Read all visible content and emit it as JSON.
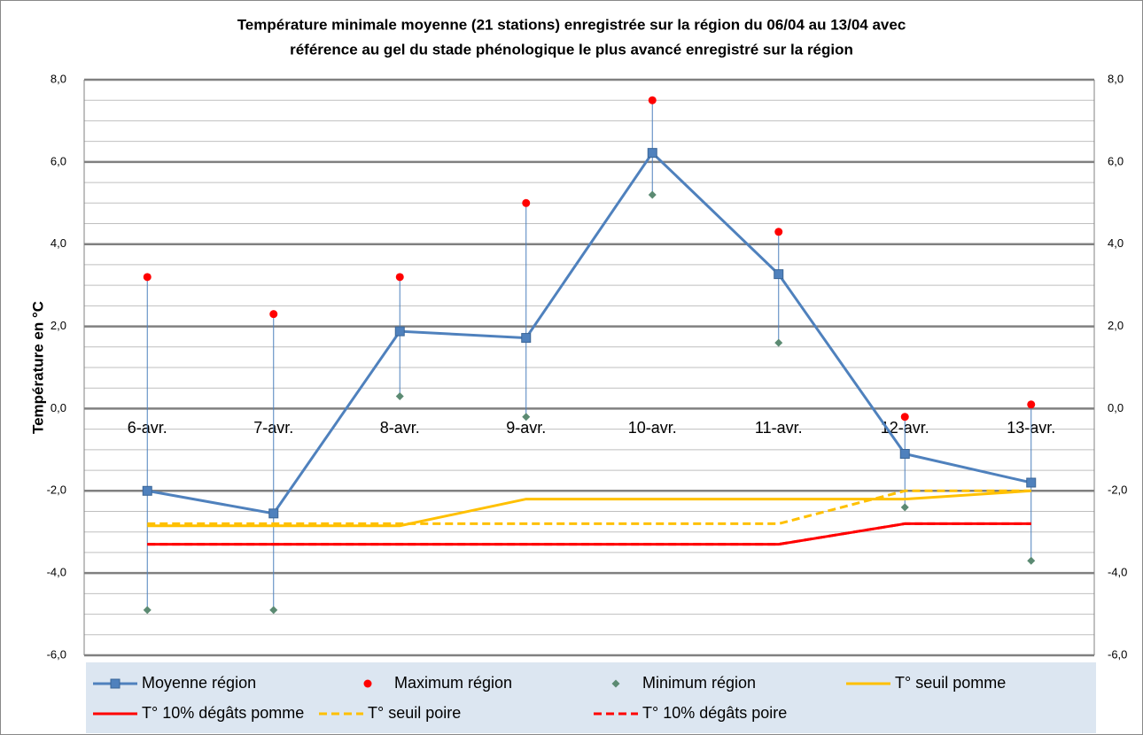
{
  "chart_data": {
    "type": "line",
    "title": [
      "Température minimale moyenne (21 stations) enregistrée sur la région du 06/04 au 13/04 avec",
      "référence au gel du stade phénologique le plus avancé enregistré sur la région"
    ],
    "y_label": "Température en °C",
    "categories": [
      "6-avr.",
      "7-avr.",
      "8-avr.",
      "9-avr.",
      "10-avr.",
      "11-avr.",
      "12-avr.",
      "13-avr."
    ],
    "ylim": [
      -6,
      8
    ],
    "yticks": [
      {
        "value": -6,
        "label": "-6,0"
      },
      {
        "value": -4,
        "label": "-4,0"
      },
      {
        "value": -2,
        "label": "-2,0"
      },
      {
        "value": 0,
        "label": "0,0"
      },
      {
        "value": 2,
        "label": "2,0"
      },
      {
        "value": 4,
        "label": "4,0"
      },
      {
        "value": 6,
        "label": "6,0"
      },
      {
        "value": 8,
        "label": "8,0"
      }
    ],
    "minor_yticks": [
      -5.5,
      -5,
      -4.5,
      -3.5,
      -3,
      -2.5,
      -1.5,
      -1,
      -0.5,
      0.5,
      1,
      1.5,
      2.5,
      3,
      3.5,
      4.5,
      5,
      5.5,
      6.5,
      7,
      7.5
    ],
    "grid": true,
    "series": [
      {
        "name": "Moyenne région",
        "color": "#4f81bd",
        "style": "solid",
        "marker": "square",
        "values": [
          -2.0,
          -2.55,
          1.88,
          1.72,
          6.22,
          3.27,
          -1.1,
          -1.8
        ]
      },
      {
        "name": "Maximum région",
        "color": "#ff0000",
        "style": "none",
        "marker": "circle",
        "values": [
          3.2,
          2.3,
          3.2,
          5.0,
          7.5,
          4.3,
          -0.2,
          0.1
        ]
      },
      {
        "name": "Minimum région",
        "color": "#5b8a72",
        "style": "none",
        "marker": "diamond",
        "values": [
          -4.9,
          -4.9,
          0.3,
          -0.2,
          5.2,
          1.6,
          -2.4,
          -3.7
        ]
      },
      {
        "name": "T° seuil pomme",
        "color": "#ffc000",
        "style": "solid",
        "marker": null,
        "values": [
          -2.85,
          -2.85,
          -2.85,
          -2.2,
          -2.2,
          -2.2,
          -2.2,
          -2.0
        ]
      },
      {
        "name": "T° 10% dégâts pomme",
        "color": "#ff0000",
        "style": "solid",
        "marker": null,
        "values": [
          -3.3,
          -3.3,
          -3.3,
          -3.3,
          -3.3,
          -3.3,
          -2.8,
          -2.8
        ]
      },
      {
        "name": "T° seuil poire",
        "color": "#ffc000",
        "style": "dashed",
        "marker": null,
        "values": [
          -2.8,
          -2.8,
          -2.8,
          -2.8,
          -2.8,
          -2.8,
          -2.0,
          -2.0
        ]
      },
      {
        "name": "T° 10% dégâts poire",
        "color": "#ff0000",
        "style": "dashed",
        "marker": null,
        "values": [
          -3.3,
          -3.3,
          -3.3,
          -3.3,
          -3.3,
          -3.3,
          -2.8,
          -2.8
        ]
      }
    ]
  }
}
